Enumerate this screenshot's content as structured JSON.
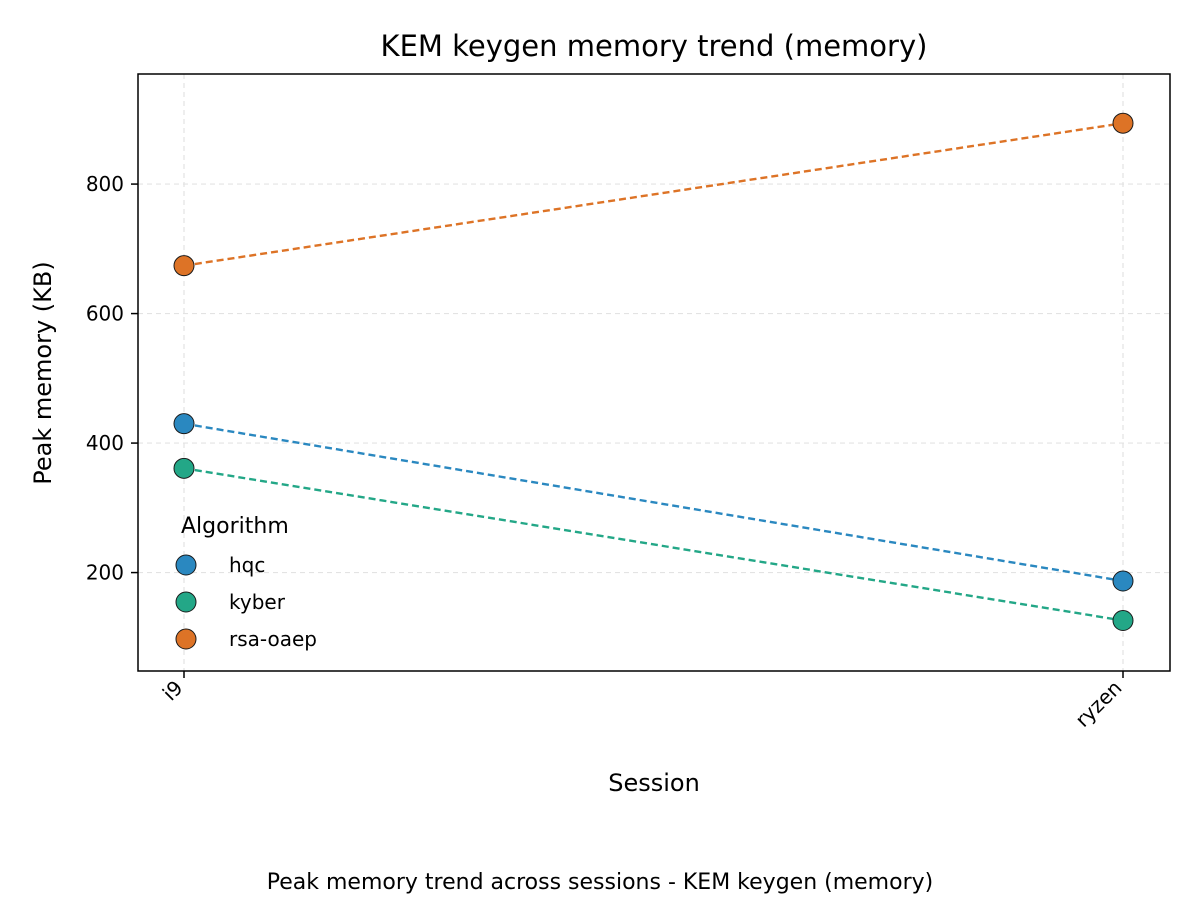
{
  "chart_data": {
    "type": "line",
    "title": "KEM keygen memory trend (memory)",
    "caption": "Peak memory trend across sessions - KEM keygen (memory)",
    "xlabel": "Session",
    "ylabel": "Peak memory (KB)",
    "categories": [
      "i9",
      "ryzen"
    ],
    "ylim": [
      48,
      970
    ],
    "yticks": [
      200,
      400,
      600,
      800
    ],
    "grid": true,
    "line_style": "dashed",
    "legend": {
      "title": "Algorithm",
      "placement": "lower-left"
    },
    "series": [
      {
        "name": "hqc",
        "color": "#2a88c0",
        "values": [
          430,
          187
        ]
      },
      {
        "name": "kyber",
        "color": "#23a787",
        "values": [
          361,
          126
        ]
      },
      {
        "name": "rsa-oaep",
        "color": "#dd7326",
        "values": [
          674,
          894
        ]
      }
    ]
  }
}
